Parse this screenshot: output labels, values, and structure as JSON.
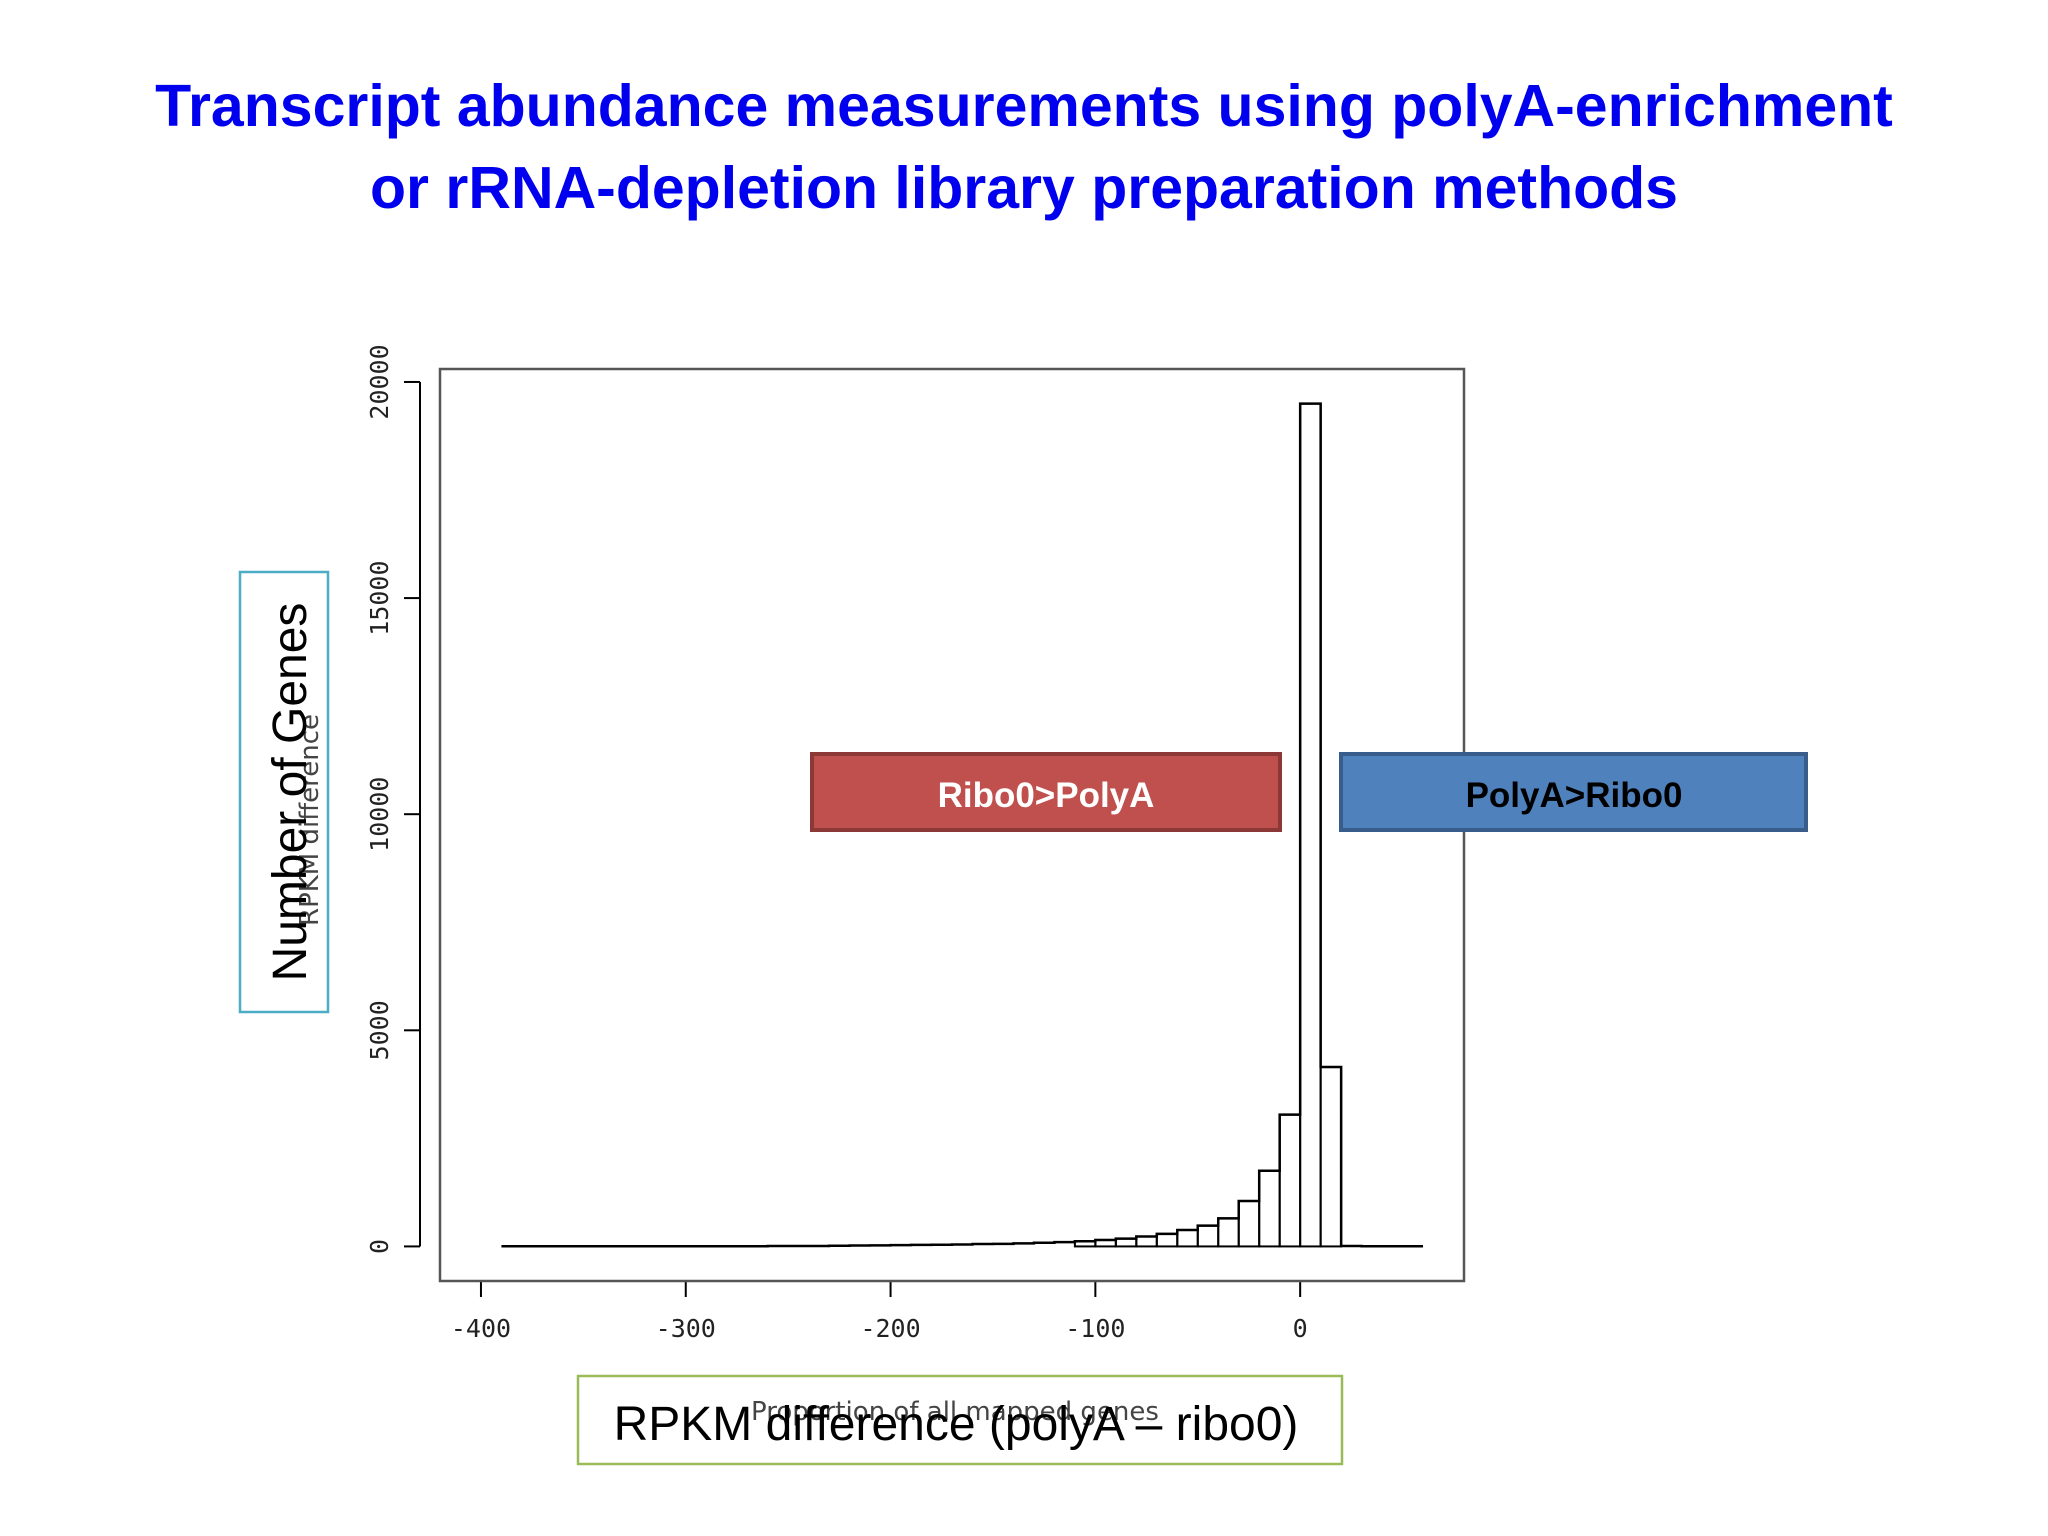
{
  "slide": {
    "title_line1": "Transcript abundance measurements using polyA-enrichment",
    "title_line2": "or rRNA-depletion library preparation methods",
    "title_color": "#0000ee"
  },
  "annotations": {
    "ribo0_label": "Ribo0>PolyA",
    "ribo0_color": "#c0504d",
    "polya_label": "PolyA>Ribo0",
    "polya_color": "#4f81bd",
    "y_box_label": "Number of Genes",
    "x_box_label": "RPKM difference (polyA – ribo0)"
  },
  "chart_data": {
    "type": "bar",
    "style": "step-histogram",
    "xlim": [
      -420,
      80
    ],
    "ylim": [
      -800,
      20300
    ],
    "x_ticks": [
      -400,
      -300,
      -200,
      -100,
      0
    ],
    "y_ticks": [
      0,
      5000,
      10000,
      15000,
      20000
    ],
    "bin_edges": [
      -390,
      -380,
      -370,
      -360,
      -350,
      -340,
      -330,
      -320,
      -310,
      -300,
      -290,
      -280,
      -270,
      -260,
      -250,
      -240,
      -230,
      -220,
      -210,
      -200,
      -190,
      -180,
      -170,
      -160,
      -150,
      -140,
      -130,
      -120,
      -110,
      -100,
      -90,
      -80,
      -70,
      -60,
      -50,
      -40,
      -30,
      -20,
      -10,
      0,
      10,
      20,
      30,
      40,
      50,
      60
    ],
    "counts": [
      5,
      5,
      5,
      5,
      5,
      5,
      5,
      5,
      5,
      5,
      5,
      5,
      5,
      10,
      10,
      10,
      15,
      20,
      25,
      30,
      35,
      40,
      45,
      55,
      60,
      70,
      85,
      100,
      120,
      150,
      180,
      230,
      290,
      380,
      480,
      650,
      1050,
      1750,
      3050,
      19500,
      4150,
      10,
      5,
      5,
      5
    ],
    "ghost_xlabel": "Proportion of all mapped genes",
    "ghost_ylabel": "RPKM difference"
  }
}
